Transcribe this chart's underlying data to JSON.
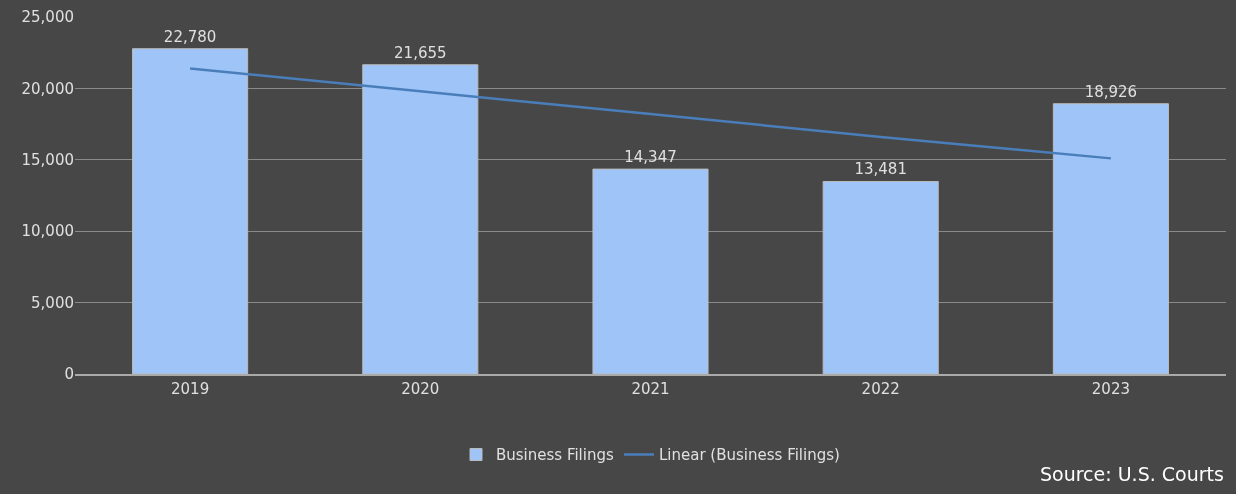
{
  "chart_data": {
    "type": "bar",
    "categories": [
      "2019",
      "2020",
      "2021",
      "2022",
      "2023"
    ],
    "series": [
      {
        "name": "Business Filings",
        "color": "#9fc5f8",
        "values": [
          22780,
          21655,
          14347,
          13481,
          18926
        ],
        "value_labels": [
          "22,780",
          "21,655",
          "14,347",
          "13,481",
          "18,926"
        ]
      },
      {
        "name": "Linear (Business Filings)",
        "type": "line",
        "color": "#4a7ebb",
        "values": [
          21400,
          19800,
          18200,
          16600,
          15100
        ]
      }
    ],
    "ylim": [
      0,
      25000
    ],
    "yticks": [
      {
        "value": 0,
        "label": "0"
      },
      {
        "value": 5000,
        "label": "5,000"
      },
      {
        "value": 10000,
        "label": "10,000"
      },
      {
        "value": 15000,
        "label": "15,000"
      },
      {
        "value": 20000,
        "label": "20,000"
      },
      {
        "value": 25000,
        "label": "25,000"
      }
    ],
    "grid": "y",
    "legend": "bottom",
    "marker": "none",
    "line_style": "solid",
    "annotations": [
      "Source: U.S. Courts"
    ]
  }
}
